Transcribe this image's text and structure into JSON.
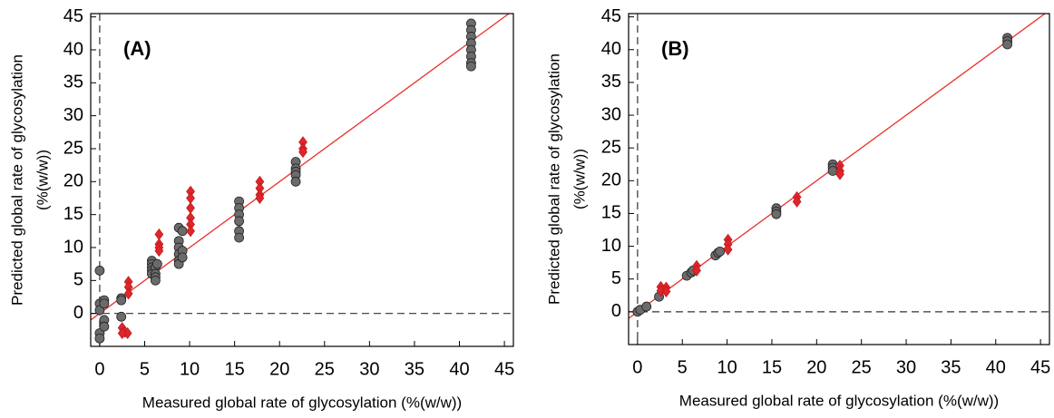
{
  "chart_data": [
    {
      "type": "scatter",
      "panel_label": "(A)",
      "xlabel": "Measured global rate of glycosylation (%(w/w))",
      "ylabel": [
        "Predicted global rate of glycosylation",
        "(%(w/w))"
      ],
      "xlim": [
        -1,
        46
      ],
      "ylim": [
        -5,
        45.5
      ],
      "xticks": [
        0,
        5,
        10,
        15,
        20,
        25,
        30,
        35,
        40,
        45
      ],
      "yticks": [
        0,
        5,
        10,
        15,
        20,
        25,
        30,
        35,
        40,
        45
      ],
      "diagonal": true,
      "diagonal_color": "#e8302a",
      "zero_lines": true,
      "series": [
        {
          "color": "#6b6b6b",
          "marker": "circle",
          "x": [
            0,
            0,
            0,
            0,
            0,
            0.5,
            0.5,
            0.5,
            0.5,
            2.4,
            2.4,
            2.4,
            5.8,
            5.8,
            5.8,
            5.8,
            5.8,
            6.2,
            6.2,
            6.2,
            6.2,
            6.4,
            8.8,
            8.8,
            8.8,
            8.8,
            8.8,
            8.8,
            9.2,
            9.2,
            9.2,
            15.5,
            15.5,
            15.5,
            15.5,
            15.5,
            15.5,
            21.8,
            21.8,
            21.8,
            21.8,
            21.8,
            41.3,
            41.3,
            41.3,
            41.3,
            41.3,
            41.3,
            41.3,
            41.3
          ],
          "values": [
            6.5,
            1.5,
            0.5,
            -3,
            -3.8,
            2,
            1.5,
            -1,
            -2,
            2.3,
            2,
            -0.5,
            8,
            7.5,
            7,
            6.5,
            6,
            7,
            6,
            5.5,
            5,
            7.5,
            13,
            11,
            10,
            9,
            8,
            7.5,
            12.5,
            9.5,
            8.5,
            17,
            16,
            15,
            14,
            12.5,
            11.5,
            23,
            22,
            21.5,
            21,
            20,
            44,
            43,
            42,
            41,
            40,
            39,
            38,
            37.5
          ]
        },
        {
          "color": "#e0262b",
          "marker": "diamond",
          "x": [
            3.2,
            3.2,
            3.2,
            2.5,
            2.8,
            3.1,
            2.5,
            6.6,
            6.6,
            6.6,
            6.6,
            10.1,
            10.1,
            10.1,
            10.1,
            10.1,
            10.1,
            17.8,
            17.8,
            17.8,
            17.8,
            22.6,
            22.6,
            22.6
          ],
          "values": [
            4.8,
            4,
            3,
            -2.2,
            -2.8,
            -3,
            -3,
            12,
            10.5,
            10,
            9.5,
            18.5,
            17.5,
            16,
            14.5,
            13.5,
            12.5,
            20,
            19,
            18,
            17.5,
            26,
            25,
            24.5
          ]
        }
      ]
    },
    {
      "type": "scatter",
      "panel_label": "(B)",
      "xlabel": "Measured global rate of glycosylation (%(w/w))",
      "ylabel": [
        "Predicted global rate of glycosylation",
        "(%(w/w))"
      ],
      "xlim": [
        -1,
        46
      ],
      "ylim": [
        -5,
        45.5
      ],
      "xticks": [
        0,
        5,
        10,
        15,
        20,
        25,
        30,
        35,
        40,
        45
      ],
      "yticks": [
        0,
        5,
        10,
        15,
        20,
        25,
        30,
        35,
        40,
        45
      ],
      "diagonal": true,
      "diagonal_color": "#e8302a",
      "zero_lines": true,
      "series": [
        {
          "color": "#6b6b6b",
          "marker": "circle",
          "x": [
            0,
            0.3,
            1,
            2.4,
            5.5,
            6,
            6.2,
            8.7,
            9,
            9.2,
            15.5,
            15.5,
            15.5,
            21.8,
            21.8,
            21.8,
            41.3,
            41.3,
            41.3
          ],
          "values": [
            0,
            0.3,
            0.8,
            2.3,
            5.5,
            6,
            6.3,
            8.6,
            9,
            9.2,
            15.8,
            15.3,
            14.9,
            22.5,
            22,
            21.5,
            41.8,
            41.3,
            40.8
          ]
        },
        {
          "color": "#e0262b",
          "marker": "diamond",
          "x": [
            2.6,
            2.6,
            3.2,
            3.2,
            6.6,
            6.6,
            10.1,
            10.1,
            10.1,
            17.8,
            17.8,
            22.6,
            22.6,
            22.6
          ],
          "values": [
            3.8,
            3.2,
            3.7,
            3.1,
            7,
            6.3,
            11,
            10.3,
            9.5,
            17.5,
            16.8,
            22.3,
            21.5,
            21
          ]
        }
      ]
    }
  ]
}
